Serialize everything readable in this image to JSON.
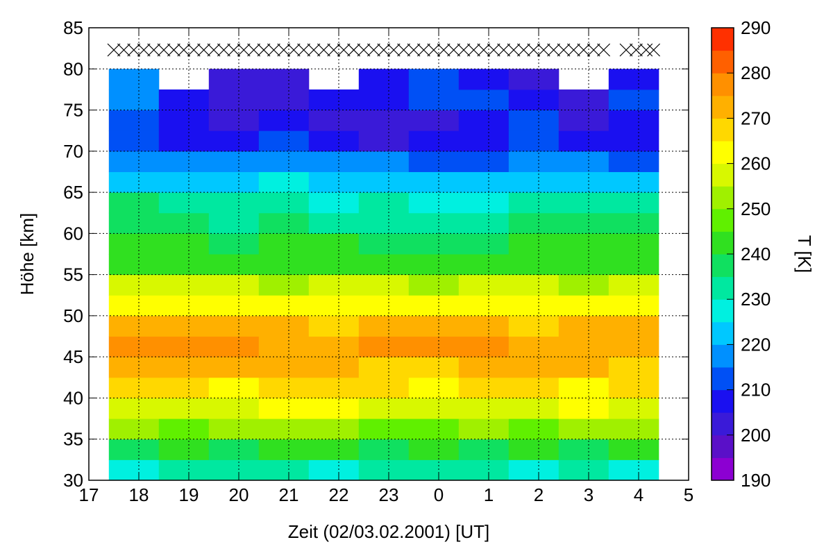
{
  "chart_data": {
    "type": "heatmap",
    "xlabel": "Zeit (02/03.02.2001) [UT]",
    "ylabel": "Höhe [km]",
    "colorbar_label": "T [K]",
    "xlim": [
      17,
      29
    ],
    "xticks": [
      17,
      18,
      19,
      20,
      21,
      22,
      23,
      {
        "value": 24,
        "label": "0"
      },
      {
        "value": 25,
        "label": "1"
      },
      {
        "value": 26,
        "label": "2"
      },
      {
        "value": 27,
        "label": "3"
      },
      {
        "value": 28,
        "label": "4"
      },
      {
        "value": 29,
        "label": "5"
      }
    ],
    "ylim": [
      30,
      85
    ],
    "yticks": [
      30,
      35,
      40,
      45,
      50,
      55,
      60,
      65,
      70,
      75,
      80,
      85
    ],
    "grid": true,
    "zlim": [
      190,
      290
    ],
    "zticks": [
      190,
      200,
      210,
      220,
      230,
      240,
      250,
      260,
      270,
      280,
      290
    ],
    "colors": [
      "#8c00d2",
      "#5a10c8",
      "#3a1ad8",
      "#1a10f0",
      "#0050f5",
      "#0090ff",
      "#00c8ff",
      "#00f0e0",
      "#00e8a0",
      "#10e060",
      "#30e020",
      "#60f000",
      "#a0f000",
      "#d8f800",
      "#ffff00",
      "#ffd800",
      "#ffb000",
      "#ff9000",
      "#ff6000",
      "#ff3000"
    ],
    "x": [
      17.9,
      18.9,
      19.9,
      20.9,
      21.9,
      22.9,
      23.9,
      24.9,
      25.9,
      26.9,
      27.9
    ],
    "y": [
      31.25,
      33.75,
      36.25,
      38.75,
      41.25,
      43.75,
      46.25,
      48.75,
      51.25,
      53.75,
      56.25,
      58.75,
      61.25,
      63.75,
      66.25,
      68.75,
      71.25,
      73.75,
      76.25,
      78.75
    ],
    "values": [
      [
        228,
        230,
        232,
        230,
        228,
        230,
        232,
        230,
        228,
        230,
        228
      ],
      [
        238,
        240,
        238,
        240,
        240,
        238,
        240,
        238,
        240,
        238,
        240
      ],
      [
        250,
        248,
        250,
        252,
        250,
        245,
        248,
        250,
        248,
        250,
        250
      ],
      [
        258,
        256,
        258,
        260,
        260,
        258,
        256,
        258,
        258,
        260,
        258
      ],
      [
        266,
        265,
        264,
        266,
        268,
        265,
        264,
        265,
        266,
        264,
        265
      ],
      [
        272,
        273,
        270,
        272,
        270,
        268,
        268,
        272,
        270,
        270,
        268
      ],
      [
        276,
        276,
        275,
        274,
        274,
        275,
        276,
        276,
        274,
        274,
        272
      ],
      [
        272,
        270,
        270,
        270,
        268,
        270,
        272,
        270,
        268,
        270,
        270
      ],
      [
        264,
        264,
        262,
        264,
        262,
        264,
        264,
        262,
        262,
        264,
        262
      ],
      [
        256,
        255,
        256,
        254,
        255,
        256,
        254,
        255,
        256,
        254,
        256
      ],
      [
        244,
        244,
        242,
        244,
        244,
        240,
        240,
        242,
        242,
        244,
        242
      ],
      [
        240,
        240,
        238,
        240,
        240,
        236,
        236,
        238,
        240,
        240,
        240
      ],
      [
        238,
        236,
        234,
        236,
        234,
        232,
        230,
        234,
        236,
        238,
        236
      ],
      [
        235,
        232,
        230,
        230,
        228,
        230,
        228,
        228,
        230,
        232,
        232
      ],
      [
        224,
        222,
        222,
        226,
        224,
        224,
        222,
        220,
        224,
        222,
        220
      ],
      [
        218,
        216,
        216,
        218,
        218,
        216,
        214,
        214,
        216,
        216,
        214
      ],
      [
        210,
        208,
        208,
        210,
        208,
        204,
        206,
        208,
        210,
        208,
        208
      ],
      [
        212,
        206,
        204,
        206,
        204,
        202,
        204,
        208,
        210,
        204,
        206
      ],
      [
        218,
        208,
        202,
        204,
        206,
        206,
        210,
        214,
        206,
        204,
        210
      ],
      [
        218,
        null,
        200,
        204,
        null,
        206,
        212,
        208,
        204,
        null,
        206
      ]
    ],
    "marker_y": 82.3,
    "marker_x": [
      17.5,
      17.7,
      17.9,
      18.1,
      18.3,
      18.5,
      18.7,
      18.9,
      19.1,
      19.3,
      19.5,
      19.7,
      19.9,
      20.1,
      20.3,
      20.5,
      20.7,
      20.9,
      21.1,
      21.3,
      21.5,
      21.7,
      21.9,
      22.1,
      22.3,
      22.5,
      22.7,
      22.9,
      23.1,
      23.3,
      23.5,
      23.7,
      23.9,
      24.1,
      24.3,
      24.5,
      24.7,
      24.9,
      25.1,
      25.3,
      25.5,
      25.7,
      25.9,
      26.1,
      26.3,
      26.5,
      26.7,
      26.9,
      27.1,
      27.3,
      27.75,
      27.95,
      28.15,
      28.3
    ]
  }
}
